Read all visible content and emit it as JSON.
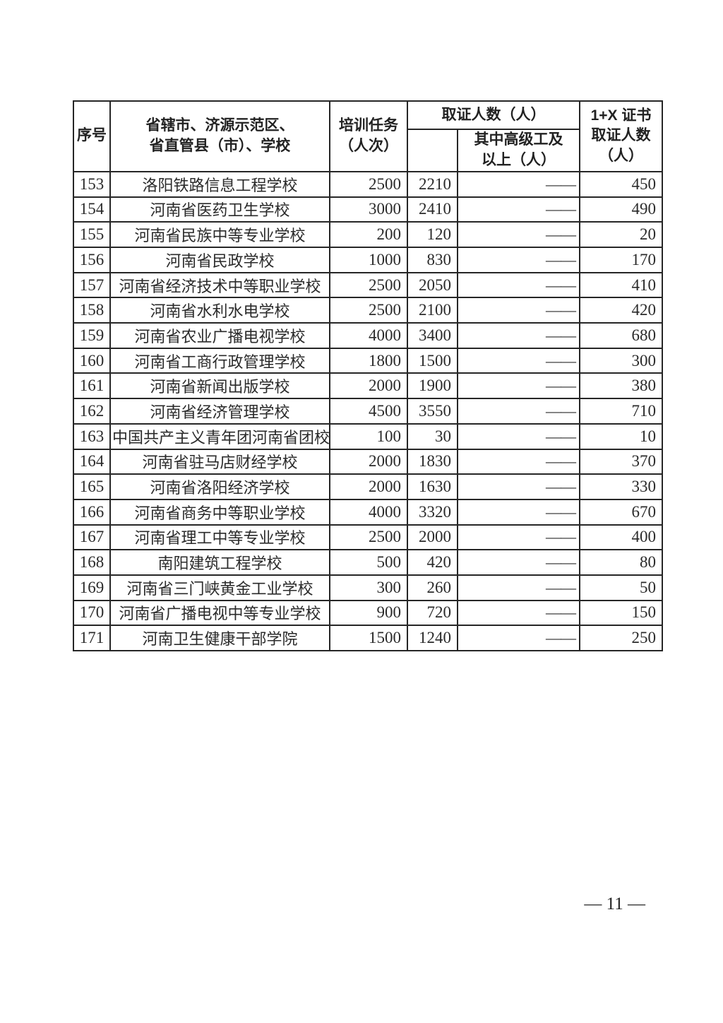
{
  "table": {
    "headers": {
      "index": "序号",
      "school": "省辖市、济源示范区、\n省直管县（市）、学校",
      "task": "培训任务\n（人次）",
      "cert_total": "取证人数（人）",
      "cert_senior": "其中高级工及\n以上（人）",
      "cert_1x": "1+X 证书\n取证人数\n（人）"
    },
    "rows": [
      {
        "no": "153",
        "school": "洛阳铁路信息工程学校",
        "task": "2500",
        "cert": "2210",
        "senior": "——",
        "x": "450"
      },
      {
        "no": "154",
        "school": "河南省医药卫生学校",
        "task": "3000",
        "cert": "2410",
        "senior": "——",
        "x": "490"
      },
      {
        "no": "155",
        "school": "河南省民族中等专业学校",
        "task": "200",
        "cert": "120",
        "senior": "——",
        "x": "20"
      },
      {
        "no": "156",
        "school": "河南省民政学校",
        "task": "1000",
        "cert": "830",
        "senior": "——",
        "x": "170"
      },
      {
        "no": "157",
        "school": "河南省经济技术中等职业学校",
        "task": "2500",
        "cert": "2050",
        "senior": "——",
        "x": "410"
      },
      {
        "no": "158",
        "school": "河南省水利水电学校",
        "task": "2500",
        "cert": "2100",
        "senior": "——",
        "x": "420"
      },
      {
        "no": "159",
        "school": "河南省农业广播电视学校",
        "task": "4000",
        "cert": "3400",
        "senior": "——",
        "x": "680"
      },
      {
        "no": "160",
        "school": "河南省工商行政管理学校",
        "task": "1800",
        "cert": "1500",
        "senior": "——",
        "x": "300"
      },
      {
        "no": "161",
        "school": "河南省新闻出版学校",
        "task": "2000",
        "cert": "1900",
        "senior": "——",
        "x": "380"
      },
      {
        "no": "162",
        "school": "河南省经济管理学校",
        "task": "4500",
        "cert": "3550",
        "senior": "——",
        "x": "710"
      },
      {
        "no": "163",
        "school": "中国共产主义青年团河南省团校",
        "task": "100",
        "cert": "30",
        "senior": "——",
        "x": "10"
      },
      {
        "no": "164",
        "school": "河南省驻马店财经学校",
        "task": "2000",
        "cert": "1830",
        "senior": "——",
        "x": "370"
      },
      {
        "no": "165",
        "school": "河南省洛阳经济学校",
        "task": "2000",
        "cert": "1630",
        "senior": "——",
        "x": "330"
      },
      {
        "no": "166",
        "school": "河南省商务中等职业学校",
        "task": "4000",
        "cert": "3320",
        "senior": "——",
        "x": "670"
      },
      {
        "no": "167",
        "school": "河南省理工中等专业学校",
        "task": "2500",
        "cert": "2000",
        "senior": "——",
        "x": "400"
      },
      {
        "no": "168",
        "school": "南阳建筑工程学校",
        "task": "500",
        "cert": "420",
        "senior": "——",
        "x": "80"
      },
      {
        "no": "169",
        "school": "河南省三门峡黄金工业学校",
        "task": "300",
        "cert": "260",
        "senior": "——",
        "x": "50"
      },
      {
        "no": "170",
        "school": "河南省广播电视中等专业学校",
        "task": "900",
        "cert": "720",
        "senior": "——",
        "x": "150"
      },
      {
        "no": "171",
        "school": "河南卫生健康干部学院",
        "task": "1500",
        "cert": "1240",
        "senior": "——",
        "x": "250"
      }
    ]
  },
  "footer": {
    "page_number": "— 11 —"
  }
}
